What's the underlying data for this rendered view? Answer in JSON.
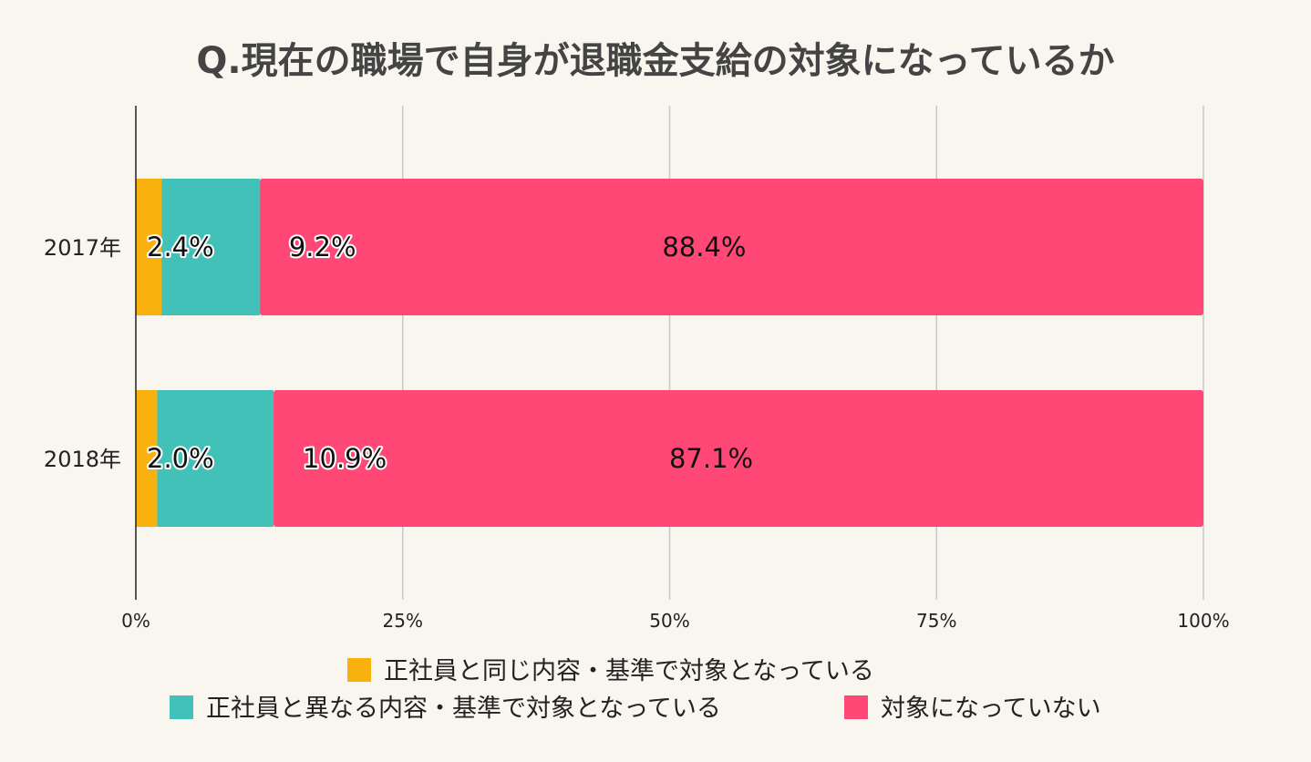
{
  "chart_data": {
    "type": "bar",
    "orientation": "horizontal",
    "stacked": true,
    "title": "Q.現在の職場で自身が退職金支給の対象になっているか",
    "categories": [
      "2017年",
      "2018年"
    ],
    "series": [
      {
        "name": "正社員と同じ内容・基準で対象となっている",
        "color": "#f9b10d",
        "values": [
          2.4,
          2.0
        ]
      },
      {
        "name": "正社員と異なる内容・基準で対象となっている",
        "color": "#42c1b9",
        "values": [
          9.2,
          10.9
        ]
      },
      {
        "name": "対象になっていない",
        "color": "#ff4875",
        "values": [
          88.4,
          87.1
        ]
      }
    ],
    "data_labels": [
      [
        "2.4%",
        "9.2%",
        "88.4%"
      ],
      [
        "2.0%",
        "10.9%",
        "87.1%"
      ]
    ],
    "xlim": [
      0,
      100
    ],
    "xticks": [
      0,
      25,
      50,
      75,
      100
    ],
    "xtick_labels": [
      "0%",
      "25%",
      "50%",
      "75%",
      "100%"
    ],
    "grid": true,
    "legend_position": "bottom"
  }
}
